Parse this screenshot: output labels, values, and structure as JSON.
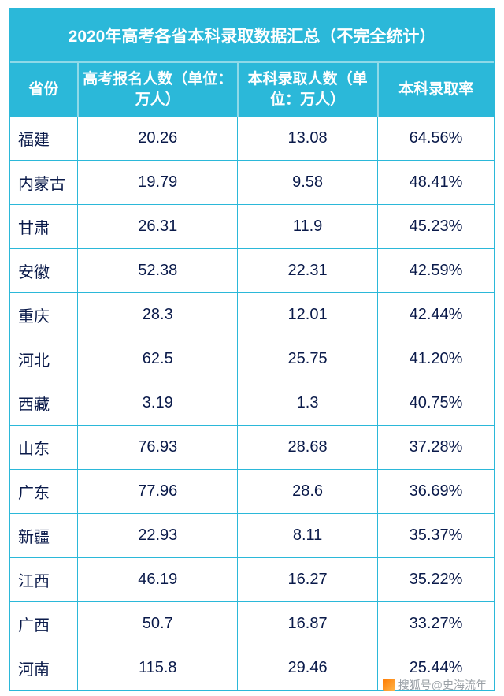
{
  "table": {
    "title": "2020年高考各省本科录取数据汇总（不完全统计）",
    "title_bg": "#2bb8d9",
    "title_color": "#ffffff",
    "border_color": "#2bb8d9",
    "text_color": "#0a1a4a",
    "columns": [
      {
        "label": "省份",
        "width_pct": 14,
        "align": "left"
      },
      {
        "label": "高考报名人数（单位：万人）",
        "width_pct": 33,
        "align": "center"
      },
      {
        "label": "本科录取人数（单位：万人）",
        "width_pct": 29,
        "align": "center"
      },
      {
        "label": "本科录取率",
        "width_pct": 24,
        "align": "center"
      }
    ],
    "rows": [
      [
        "福建",
        "20.26",
        "13.08",
        "64.56%"
      ],
      [
        "内蒙古",
        "19.79",
        "9.58",
        "48.41%"
      ],
      [
        "甘肃",
        "26.31",
        "11.9",
        "45.23%"
      ],
      [
        "安徽",
        "52.38",
        "22.31",
        "42.59%"
      ],
      [
        "重庆",
        "28.3",
        "12.01",
        "42.44%"
      ],
      [
        "河北",
        "62.5",
        "25.75",
        "41.20%"
      ],
      [
        "西藏",
        "3.19",
        "1.3",
        "40.75%"
      ],
      [
        "山东",
        "76.93",
        "28.68",
        "37.28%"
      ],
      [
        "广东",
        "77.96",
        "28.6",
        "36.69%"
      ],
      [
        "新疆",
        "22.93",
        "8.11",
        "35.37%"
      ],
      [
        "江西",
        "46.19",
        "16.27",
        "35.22%"
      ],
      [
        "广西",
        "50.7",
        "16.87",
        "33.27%"
      ],
      [
        "河南",
        "115.8",
        "29.46",
        "25.44%"
      ]
    ]
  },
  "watermark": {
    "text": "搜狐号@史海流年",
    "color": "#9aa0a6",
    "fontsize": 14
  }
}
